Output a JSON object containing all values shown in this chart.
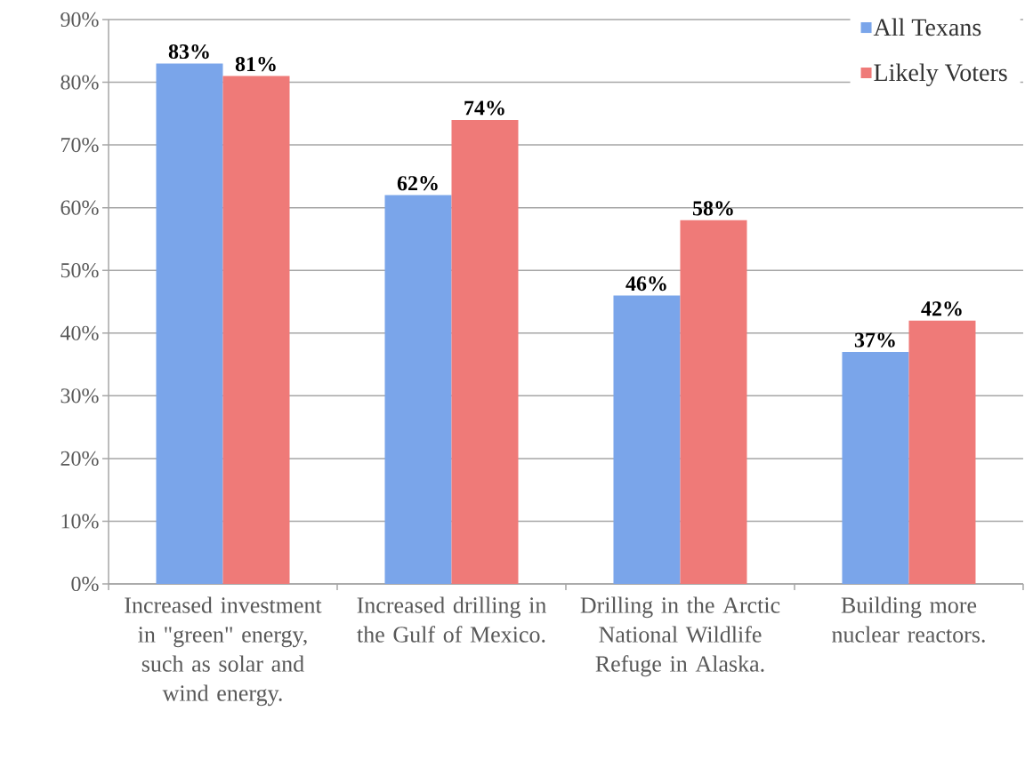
{
  "chart_data": {
    "type": "bar",
    "categories": [
      "Increased investment in \"green\" energy, such as solar and wind energy.",
      "Increased drilling in the Gulf of Mexico.",
      "Drilling in the Arctic National Wildlife Refuge in Alaska.",
      "Building more nuclear reactors."
    ],
    "series": [
      {
        "name": "All Texans",
        "color": "#7aa5ea",
        "values": [
          83,
          62,
          46,
          37
        ],
        "value_labels": [
          "83%",
          "62%",
          "46%",
          "37%"
        ]
      },
      {
        "name": "Likely Voters",
        "color": "#ef7a78",
        "values": [
          81,
          74,
          58,
          42
        ],
        "value_labels": [
          "81%",
          "74%",
          "58%",
          "42%"
        ]
      }
    ],
    "ylim": [
      0,
      90
    ],
    "yticks": [
      {
        "value": 0,
        "label": "0%"
      },
      {
        "value": 10,
        "label": "10%"
      },
      {
        "value": 20,
        "label": "20%"
      },
      {
        "value": 30,
        "label": "30%"
      },
      {
        "value": 40,
        "label": "40%"
      },
      {
        "value": 50,
        "label": "50%"
      },
      {
        "value": 60,
        "label": "60%"
      },
      {
        "value": 70,
        "label": "70%"
      },
      {
        "value": 80,
        "label": "80%"
      },
      {
        "value": 90,
        "label": "90%"
      }
    ],
    "grid": "y",
    "legend": "top right"
  }
}
